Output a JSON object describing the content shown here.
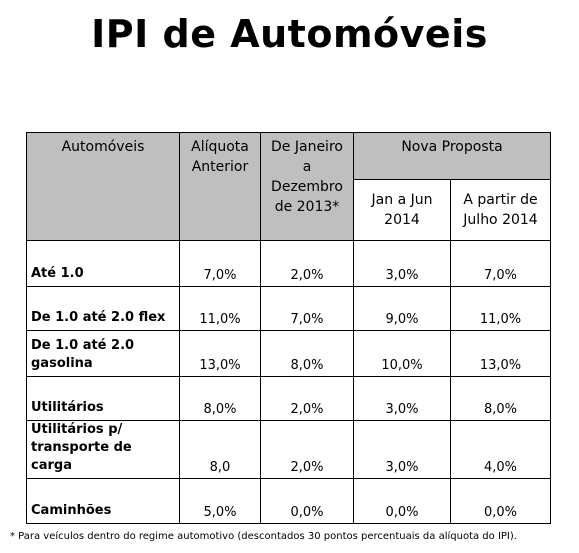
{
  "title": "IPI de Automóveis",
  "table": {
    "headers": {
      "automoveis": "Automóveis",
      "aliquota_anterior": "Alíquota Anterior",
      "jan_dez_2013": "De Janeiro a Dezembro de 2013*",
      "nova_proposta": "Nova Proposta",
      "jan_jun_2014": "Jan a Jun 2014",
      "a_partir_jul_2014": "A partir de Julho 2014"
    },
    "rows": [
      {
        "label": "Até 1.0",
        "values": [
          "7,0%",
          "2,0%",
          "3,0%",
          "7,0%"
        ]
      },
      {
        "label": "De 1.0 até 2.0  flex",
        "values": [
          "11,0%",
          "7,0%",
          "9,0%",
          "11,0%"
        ]
      },
      {
        "label": "De 1.0 até 2.0 gasolina",
        "values": [
          "13,0%",
          "8,0%",
          "10,0%",
          "13,0%"
        ]
      },
      {
        "label": "Utilitários",
        "values": [
          "8,0%",
          "2,0%",
          "3,0%",
          "8,0%"
        ]
      },
      {
        "label": "Utilitários p/ transporte de carga",
        "values": [
          "8,0",
          "2,0%",
          "3,0%",
          "4,0%"
        ]
      },
      {
        "label": "Caminhões",
        "values": [
          "5,0%",
          "0,0%",
          "0,0%",
          "0,0%"
        ]
      }
    ]
  },
  "footnote": "* Para veículos dentro do regime automotivo (descontados 30 pontos percentuais da alíquota do IPI)."
}
